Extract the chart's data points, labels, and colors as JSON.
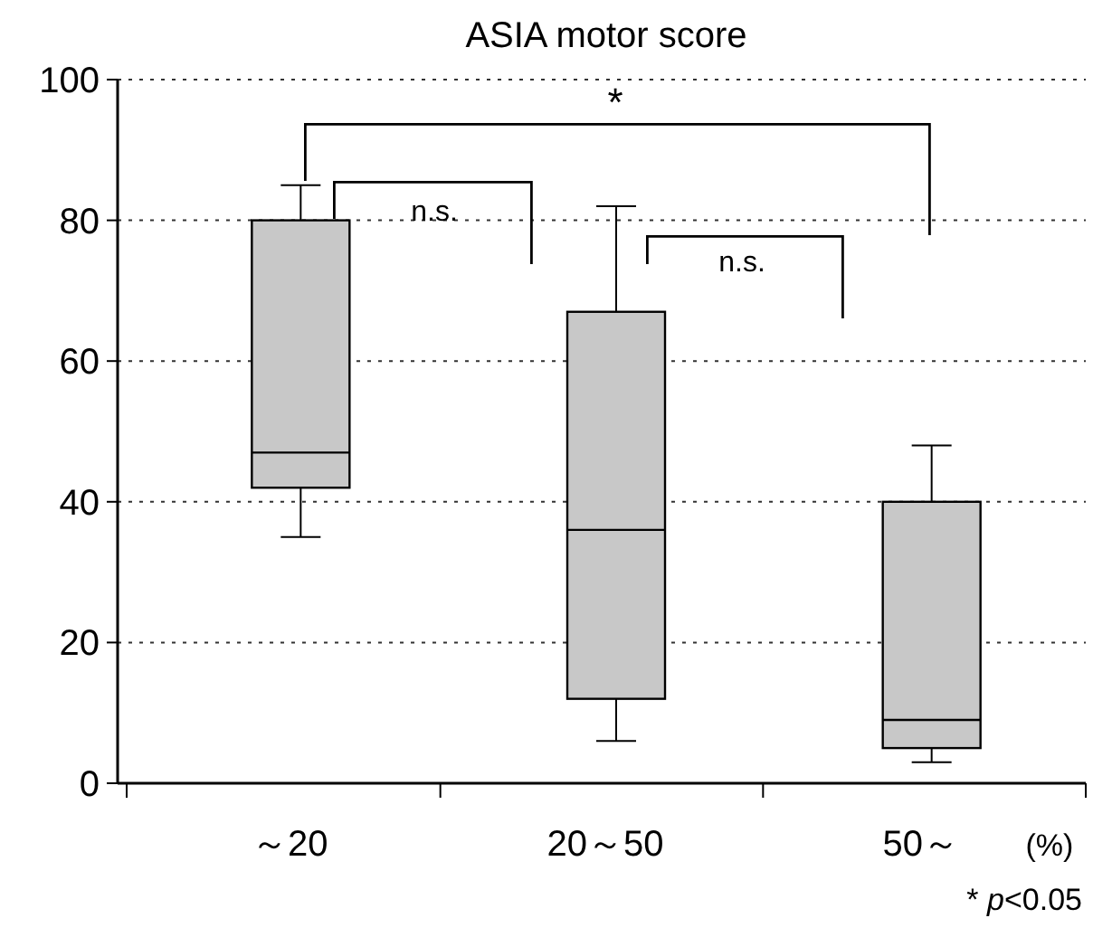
{
  "chart_data": {
    "type": "box",
    "title": "ASIA motor score",
    "xlabel": "(%)",
    "categories": [
      "～20",
      "20～50",
      "50～"
    ],
    "boxes": [
      {
        "low": 35,
        "q1": 42,
        "median": 47,
        "q3": 80,
        "high": 85
      },
      {
        "low": 6,
        "q1": 12,
        "median": 36,
        "q3": 67,
        "high": 82
      },
      {
        "low": 3,
        "q1": 5,
        "median": 9,
        "q3": 40,
        "high": 48
      }
    ],
    "color": "#c8c8c8",
    "ylim": [
      0,
      100
    ],
    "yticks": [
      0,
      20,
      40,
      60,
      80,
      100
    ],
    "grid": "y",
    "annotations": [
      "*",
      "n.s.",
      "n.s.",
      "* p<0.05"
    ]
  }
}
